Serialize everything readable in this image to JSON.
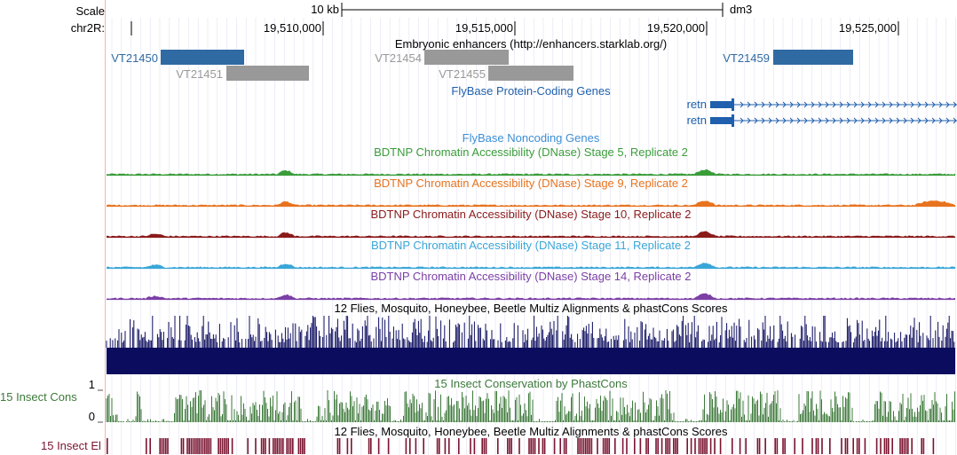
{
  "ruler": {
    "scale_label": "Scale",
    "chrom_label": "chr2R:",
    "scale_bar_label": "10 kb",
    "assembly": "dm3",
    "positions": [
      "19,510,000",
      "19,515,000",
      "19,520,000",
      "19,525,000"
    ]
  },
  "tracks": {
    "enhancers": {
      "title": "Embryonic enhancers (http://enhancers.starklab.org/)",
      "features": [
        "VT21450",
        "VT21451",
        "VT21454",
        "VT21455",
        "VT21459"
      ]
    },
    "flybase_coding": {
      "title": "FlyBase Protein-Coding Genes",
      "genes": [
        "retn",
        "retn"
      ]
    },
    "flybase_noncoding": {
      "title": "FlyBase Noncoding Genes"
    },
    "dnase": [
      {
        "title": "BDTNP Chromatin Accessibility (DNase) Stage 5, Replicate 2",
        "color": "#3a9d3a"
      },
      {
        "title": "BDTNP Chromatin Accessibility (DNase) Stage 9, Replicate 2",
        "color": "#e8731e"
      },
      {
        "title": "BDTNP Chromatin Accessibility (DNase) Stage 10, Replicate 2",
        "color": "#8b1a1a"
      },
      {
        "title": "BDTNP Chromatin Accessibility (DNase) Stage 11, Replicate 2",
        "color": "#3aa6d8"
      },
      {
        "title": "BDTNP Chromatin Accessibility (DNase) Stage 14, Replicate 2",
        "color": "#7b3fa6"
      }
    ],
    "multiz": {
      "title": "12 Flies, Mosquito, Honeybee, Beetle Multiz Alignments & phastCons Scores",
      "color": "#0c0c5e"
    },
    "cons15": {
      "title": "15 Insect Conservation by PhastCons",
      "side_label": "15 Insect Cons",
      "axis_max": "1",
      "axis_min": "0",
      "color": "#3d7a3a"
    },
    "multiz2": {
      "title": "12 Flies, Mosquito, Honeybee, Beetle Multiz Alignments & phastCons Scores"
    },
    "elements": {
      "side_label": "15 Insect El",
      "color": "#7a1430"
    }
  },
  "colors": {
    "enhancer_positive": "#2f6aa3",
    "enhancer_negative": "#999999",
    "coding_gene": "#1f5fad",
    "noncoding_title": "#3c8fd6",
    "gridline": "#c8c8e8",
    "left_guide": "#f4b3b3"
  }
}
